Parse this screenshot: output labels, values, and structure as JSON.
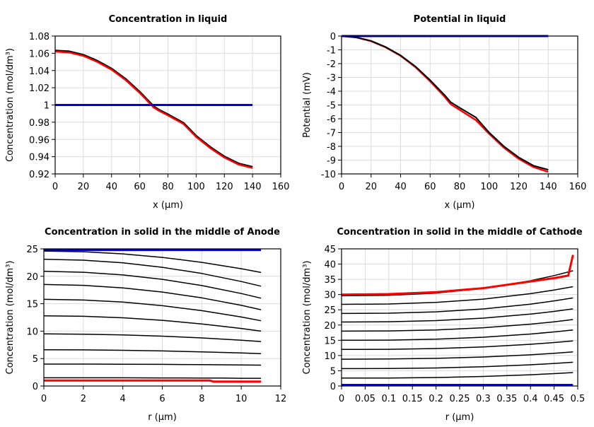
{
  "chart_data": [
    {
      "type": "line",
      "title": "Concentration in liquid",
      "xlabel": "x (µm)",
      "ylabel": "Concentration (mol/dm³)",
      "xlim": [
        0,
        160
      ],
      "ylim": [
        0.92,
        1.08
      ],
      "xticks": [
        0,
        20,
        40,
        60,
        80,
        100,
        120,
        140,
        160
      ],
      "xtick_labels": [
        "0",
        "20",
        "40",
        "60",
        "80",
        "100",
        "120",
        "140",
        "160"
      ],
      "yticks": [
        0.92,
        0.94,
        0.96,
        0.98,
        1,
        1.02,
        1.04,
        1.06,
        1.08
      ],
      "ytick_labels": [
        "0.92",
        "0.94",
        "0.96",
        "0.98",
        "1",
        "1.02",
        "1.04",
        "1.06",
        "1.08"
      ],
      "grid": true,
      "series": [
        {
          "name": "final-black",
          "color": "#000000",
          "width": 3,
          "x": [
            0,
            10,
            20,
            30,
            40,
            50,
            60,
            70,
            74,
            80,
            91,
            100,
            110,
            120,
            130,
            140
          ],
          "y": [
            1.063,
            1.062,
            1.058,
            1.051,
            1.042,
            1.03,
            1.015,
            0.998,
            0.994,
            0.989,
            0.979,
            0.964,
            0.951,
            0.94,
            0.932,
            0.928
          ]
        },
        {
          "name": "final-red",
          "color": "#ff0000",
          "width": 2.5,
          "x": [
            0,
            10,
            20,
            30,
            40,
            50,
            60,
            70,
            74,
            80,
            91,
            100,
            110,
            120,
            130,
            140
          ],
          "y": [
            1.062,
            1.061,
            1.057,
            1.05,
            1.041,
            1.029,
            1.014,
            0.997,
            0.993,
            0.988,
            0.978,
            0.963,
            0.95,
            0.939,
            0.931,
            0.927
          ]
        },
        {
          "name": "initial-blue",
          "color": "#0000dd",
          "width": 3,
          "x": [
            0,
            140
          ],
          "y": [
            1,
            1
          ]
        }
      ]
    },
    {
      "type": "line",
      "title": "Potential in liquid",
      "xlabel": "x (µm)",
      "ylabel": "Potential (mV)",
      "xlim": [
        0,
        160
      ],
      "ylim": [
        -10,
        0
      ],
      "xticks": [
        0,
        20,
        40,
        60,
        80,
        100,
        120,
        140,
        160
      ],
      "xtick_labels": [
        "0",
        "20",
        "40",
        "60",
        "80",
        "100",
        "120",
        "140",
        "160"
      ],
      "yticks": [
        0,
        -1,
        -2,
        -3,
        -4,
        -5,
        -6,
        -7,
        -8,
        -9,
        -10
      ],
      "ytick_labels": [
        "0",
        "-1",
        "-2",
        "-3",
        "-4",
        "-5",
        "-6",
        "-7",
        "-8",
        "-9",
        "-10"
      ],
      "grid": true,
      "series": [
        {
          "name": "red",
          "color": "#ff0000",
          "width": 2.5,
          "x": [
            0,
            10,
            20,
            30,
            40,
            50,
            60,
            70,
            74,
            80,
            91,
            100,
            110,
            120,
            130,
            140
          ],
          "y": [
            0,
            -0.1,
            -0.37,
            -0.82,
            -1.43,
            -2.25,
            -3.28,
            -4.42,
            -4.95,
            -5.35,
            -6.1,
            -7.1,
            -8.1,
            -8.9,
            -9.5,
            -9.85
          ]
        },
        {
          "name": "black",
          "color": "#000000",
          "width": 2,
          "x": [
            0,
            10,
            20,
            30,
            40,
            50,
            60,
            70,
            74,
            80,
            91,
            100,
            110,
            120,
            130,
            140
          ],
          "y": [
            0,
            -0.1,
            -0.35,
            -0.8,
            -1.4,
            -2.2,
            -3.2,
            -4.3,
            -4.8,
            -5.2,
            -5.9,
            -7.0,
            -8.0,
            -8.8,
            -9.4,
            -9.7
          ]
        },
        {
          "name": "blue",
          "color": "#0000dd",
          "width": 3,
          "x": [
            0,
            140
          ],
          "y": [
            0,
            0
          ]
        }
      ]
    },
    {
      "type": "line",
      "title": "Concentration in solid in the middle of Anode",
      "xlabel": "r (µm)",
      "ylabel": "Concentration (mol/dm³)",
      "xlim": [
        0,
        12
      ],
      "ylim": [
        0,
        25
      ],
      "xticks": [
        0,
        2,
        4,
        6,
        8,
        10,
        12
      ],
      "xtick_labels": [
        "0",
        "2",
        "4",
        "6",
        "8",
        "10",
        "12"
      ],
      "yticks": [
        0,
        5,
        10,
        15,
        20,
        25
      ],
      "ytick_labels": [
        "0",
        "5",
        "10",
        "15",
        "20",
        "25"
      ],
      "grid": true,
      "series": [
        {
          "name": "blue",
          "color": "#0000dd",
          "width": 3,
          "x": [
            0,
            11
          ],
          "y": [
            24.8,
            24.8
          ]
        },
        {
          "name": "t1",
          "color": "#000000",
          "width": 1.5,
          "x": [
            0,
            2,
            4,
            6,
            8,
            10,
            11
          ],
          "y": [
            24.6,
            24.47,
            24.09,
            23.44,
            22.54,
            21.38,
            20.7
          ]
        },
        {
          "name": "t2",
          "color": "#000000",
          "width": 1.5,
          "x": [
            0,
            2,
            4,
            6,
            8,
            10,
            11
          ],
          "y": [
            23.1,
            22.94,
            22.45,
            21.64,
            20.51,
            19.05,
            18.2
          ]
        },
        {
          "name": "t3",
          "color": "#000000",
          "width": 1.5,
          "x": [
            0,
            2,
            4,
            6,
            8,
            10,
            11
          ],
          "y": [
            20.9,
            20.74,
            20.25,
            19.44,
            18.31,
            16.85,
            16.0
          ]
        },
        {
          "name": "t4",
          "color": "#000000",
          "width": 1.5,
          "x": [
            0,
            2,
            4,
            6,
            8,
            10,
            11
          ],
          "y": [
            18.5,
            18.35,
            17.89,
            17.13,
            16.07,
            14.7,
            13.9
          ]
        },
        {
          "name": "t5",
          "color": "#000000",
          "width": 1.5,
          "x": [
            0,
            2,
            4,
            6,
            8,
            10,
            11
          ],
          "y": [
            15.8,
            15.67,
            15.29,
            14.64,
            13.74,
            12.58,
            11.9
          ]
        },
        {
          "name": "t6",
          "color": "#000000",
          "width": 1.5,
          "x": [
            0,
            2,
            4,
            6,
            8,
            10,
            11
          ],
          "y": [
            12.8,
            12.71,
            12.43,
            11.97,
            11.32,
            10.49,
            10.0
          ]
        },
        {
          "name": "t7",
          "color": "#000000",
          "width": 1.5,
          "x": [
            0,
            2,
            4,
            6,
            8,
            10,
            11
          ],
          "y": [
            9.5,
            9.45,
            9.32,
            9.08,
            8.76,
            8.34,
            8.1
          ]
        },
        {
          "name": "t8",
          "color": "#000000",
          "width": 1.5,
          "x": [
            0,
            2,
            4,
            6,
            8,
            10,
            11
          ],
          "y": [
            6.6,
            6.58,
            6.51,
            6.39,
            6.23,
            6.02,
            5.9
          ]
        },
        {
          "name": "t9",
          "color": "#000000",
          "width": 1.5,
          "x": [
            0,
            2,
            4,
            6,
            8,
            10,
            11
          ],
          "y": [
            4.0,
            4.0,
            3.97,
            3.94,
            3.89,
            3.83,
            3.8
          ]
        },
        {
          "name": "t10",
          "color": "#000000",
          "width": 1.5,
          "x": [
            0,
            2,
            4,
            6,
            8,
            9,
            10,
            11
          ],
          "y": [
            1.5,
            1.5,
            1.49,
            1.47,
            1.45,
            1.45,
            1.4,
            1.4
          ]
        },
        {
          "name": "red",
          "color": "#ff0000",
          "width": 3,
          "x": [
            0,
            8.4,
            8.6,
            11
          ],
          "y": [
            1.0,
            1.0,
            0.8,
            0.8
          ]
        }
      ]
    },
    {
      "type": "line",
      "title": "Concentration in solid in the middle of Cathode",
      "xlabel": "r (µm)",
      "ylabel": "Concentration (mol/dm³)",
      "xlim": [
        0,
        0.5
      ],
      "ylim": [
        0,
        45
      ],
      "xticks": [
        0,
        0.05,
        0.1,
        0.15,
        0.2,
        0.25,
        0.3,
        0.35,
        0.4,
        0.45,
        0.5
      ],
      "xtick_labels": [
        "0",
        "0.05",
        "0.1",
        "0.15",
        "0.2",
        "0.25",
        "0.3",
        "0.35",
        "0.4",
        "0.45",
        "0.5"
      ],
      "yticks": [
        0,
        5,
        10,
        15,
        20,
        25,
        30,
        35,
        40,
        45
      ],
      "ytick_labels": [
        "0",
        "5",
        "10",
        "15",
        "20",
        "25",
        "30",
        "35",
        "40",
        "45"
      ],
      "grid": true,
      "series": [
        {
          "name": "blue",
          "color": "#0000dd",
          "width": 3.5,
          "x": [
            0,
            0.49
          ],
          "y": [
            0.3,
            0.3
          ]
        },
        {
          "name": "t1",
          "color": "#000000",
          "width": 1.5,
          "x": [
            0,
            0.1,
            0.2,
            0.3,
            0.4,
            0.45,
            0.49
          ],
          "y": [
            29.6,
            29.75,
            30.47,
            32.0,
            34.54,
            36.23,
            37.8
          ]
        },
        {
          "name": "t2",
          "color": "#000000",
          "width": 1.5,
          "x": [
            0,
            0.1,
            0.2,
            0.3,
            0.4,
            0.45,
            0.49
          ],
          "y": [
            26.8,
            26.91,
            27.42,
            28.5,
            30.29,
            31.49,
            32.6
          ]
        },
        {
          "name": "t3",
          "color": "#000000",
          "width": 1.5,
          "x": [
            0,
            0.1,
            0.2,
            0.3,
            0.4,
            0.45,
            0.49
          ],
          "y": [
            23.8,
            23.9,
            24.34,
            25.29,
            26.87,
            27.92,
            28.9
          ]
        },
        {
          "name": "t4",
          "color": "#000000",
          "width": 1.5,
          "x": [
            0,
            0.1,
            0.2,
            0.3,
            0.4,
            0.45,
            0.49
          ],
          "y": [
            21.0,
            21.08,
            21.46,
            22.26,
            23.59,
            24.47,
            25.3
          ]
        },
        {
          "name": "t5",
          "color": "#000000",
          "width": 1.5,
          "x": [
            0,
            0.1,
            0.2,
            0.3,
            0.4,
            0.45,
            0.49
          ],
          "y": [
            18.0,
            18.07,
            18.4,
            19.11,
            20.29,
            21.07,
            21.8
          ]
        },
        {
          "name": "t6",
          "color": "#000000",
          "width": 1.5,
          "x": [
            0,
            0.1,
            0.2,
            0.3,
            0.4,
            0.45,
            0.49
          ],
          "y": [
            15.0,
            15.06,
            15.36,
            16.0,
            17.05,
            17.75,
            18.4
          ]
        },
        {
          "name": "t7",
          "color": "#000000",
          "width": 1.5,
          "x": [
            0,
            0.1,
            0.2,
            0.3,
            0.4,
            0.45,
            0.49
          ],
          "y": [
            12.0,
            12.05,
            12.3,
            12.82,
            13.69,
            14.26,
            14.8
          ]
        },
        {
          "name": "t8",
          "color": "#000000",
          "width": 1.5,
          "x": [
            0,
            0.1,
            0.2,
            0.3,
            0.4,
            0.45,
            0.49
          ],
          "y": [
            8.8,
            8.85,
            9.06,
            9.5,
            10.24,
            10.74,
            11.2
          ]
        },
        {
          "name": "t9",
          "color": "#000000",
          "width": 1.5,
          "x": [
            0,
            0.1,
            0.2,
            0.3,
            0.4,
            0.45,
            0.49
          ],
          "y": [
            5.7,
            5.74,
            5.92,
            6.32,
            6.96,
            7.4,
            7.8
          ]
        },
        {
          "name": "t10",
          "color": "#000000",
          "width": 1.5,
          "x": [
            0,
            0.1,
            0.2,
            0.3,
            0.4,
            0.45,
            0.49
          ],
          "y": [
            2.6,
            2.63,
            2.79,
            3.13,
            3.68,
            4.05,
            4.4
          ]
        },
        {
          "name": "red",
          "color": "#ff0000",
          "width": 3,
          "x": [
            0,
            0.1,
            0.2,
            0.3,
            0.4,
            0.45,
            0.48,
            0.49
          ],
          "y": [
            30.0,
            30.15,
            30.8,
            32.1,
            34.3,
            35.4,
            36.2,
            43.0
          ]
        }
      ]
    }
  ]
}
